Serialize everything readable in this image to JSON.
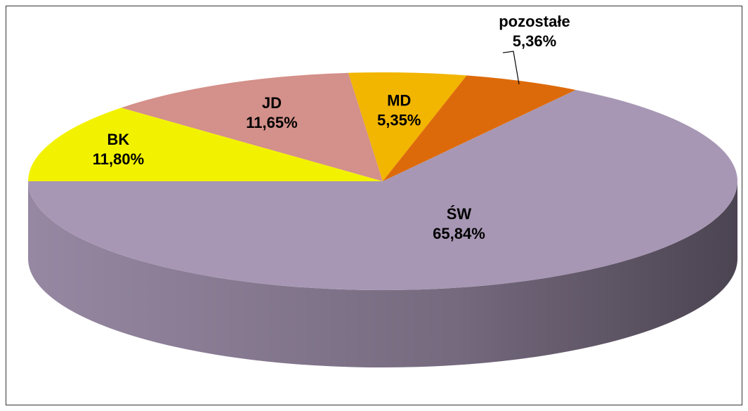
{
  "chart_data": {
    "type": "pie",
    "categories": [
      "BK",
      "JD",
      "MD",
      "pozostałe",
      "ŚW"
    ],
    "values": [
      11.8,
      11.65,
      5.35,
      5.36,
      65.84
    ],
    "value_labels": [
      "11,80%",
      "11,65%",
      "5,35%",
      "5,36%",
      "65,84%"
    ],
    "colors": [
      "#f2f200",
      "#d4908a",
      "#f2b500",
      "#dd6a0a",
      "#a797b4"
    ]
  }
}
